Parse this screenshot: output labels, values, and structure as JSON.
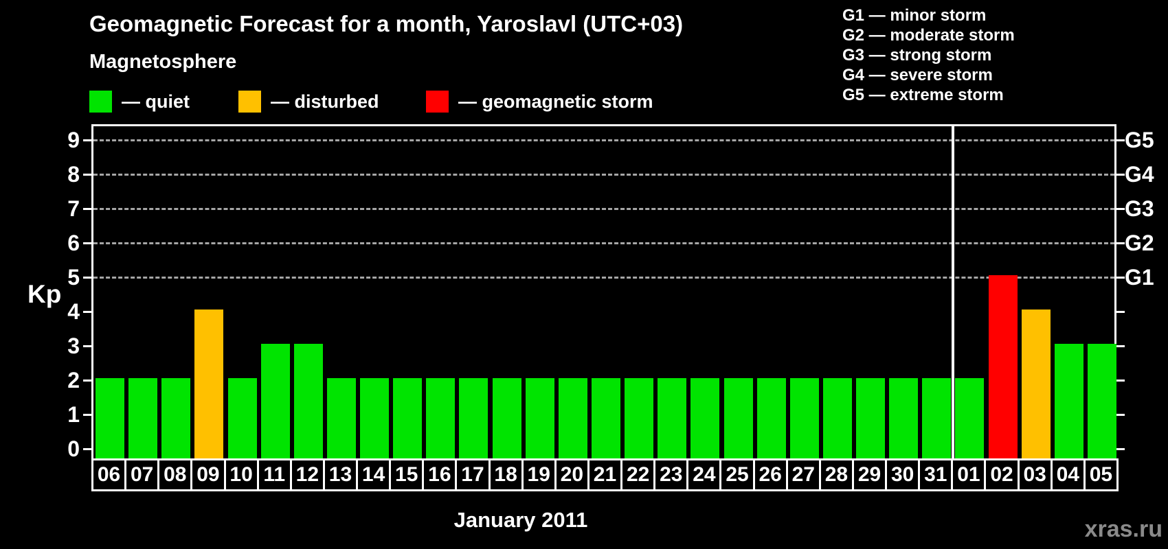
{
  "title": "Geomagnetic Forecast for a month, Yaroslavl (UTC+03)",
  "watermark": "xras.ru",
  "colors": {
    "background": "#000000",
    "text": "#ffffff",
    "axis": "#ffffff",
    "gridline": "#a6a6a6",
    "quiet": "#00e400",
    "disturbed": "#ffc000",
    "storm": "#ff0000",
    "watermark": "#8a8a8a"
  },
  "legend": {
    "title": "Magnetosphere",
    "items": [
      {
        "status": "quiet",
        "label": "— quiet",
        "color": "#00e400"
      },
      {
        "status": "disturbed",
        "label": "— disturbed",
        "color": "#ffc000"
      },
      {
        "status": "storm",
        "label": "— geomagnetic storm",
        "color": "#ff0000"
      }
    ]
  },
  "storm_scale_legend": [
    "G1 — minor storm",
    "G2 — moderate storm",
    "G3 — strong storm",
    "G4 — severe storm",
    "G5 — extreme storm"
  ],
  "chart_data": {
    "type": "bar",
    "title": "Geomagnetic Forecast for a month, Yaroslavl (UTC+03)",
    "xlabel": "January 2011",
    "ylabel": "Kp",
    "ylim": [
      0,
      9.4
    ],
    "grid": "dashed horizontal at Kp 5-9 only",
    "legend_position": "top",
    "yticks": [
      0,
      1,
      2,
      3,
      4,
      5,
      6,
      7,
      8,
      9
    ],
    "right_axis_labels": [
      {
        "kp": 5,
        "label": "G1"
      },
      {
        "kp": 6,
        "label": "G2"
      },
      {
        "kp": 7,
        "label": "G3"
      },
      {
        "kp": 8,
        "label": "G4"
      },
      {
        "kp": 9,
        "label": "G5"
      }
    ],
    "gridlines_at": [
      5,
      6,
      7,
      8,
      9
    ],
    "month_boundary_index": 26,
    "categories": [
      "06",
      "07",
      "08",
      "09",
      "10",
      "11",
      "12",
      "13",
      "14",
      "15",
      "16",
      "17",
      "18",
      "19",
      "20",
      "21",
      "22",
      "23",
      "24",
      "25",
      "26",
      "27",
      "28",
      "29",
      "30",
      "31",
      "01",
      "02",
      "03",
      "04",
      "05"
    ],
    "values": [
      2,
      2,
      2,
      4,
      2,
      3,
      3,
      2,
      2,
      2,
      2,
      2,
      2,
      2,
      2,
      2,
      2,
      2,
      2,
      2,
      2,
      2,
      2,
      2,
      2,
      2,
      2,
      5,
      4,
      3,
      3
    ],
    "statuses": [
      "quiet",
      "quiet",
      "quiet",
      "disturbed",
      "quiet",
      "quiet",
      "quiet",
      "quiet",
      "quiet",
      "quiet",
      "quiet",
      "quiet",
      "quiet",
      "quiet",
      "quiet",
      "quiet",
      "quiet",
      "quiet",
      "quiet",
      "quiet",
      "quiet",
      "quiet",
      "quiet",
      "quiet",
      "quiet",
      "quiet",
      "quiet",
      "storm",
      "disturbed",
      "quiet",
      "quiet"
    ]
  }
}
